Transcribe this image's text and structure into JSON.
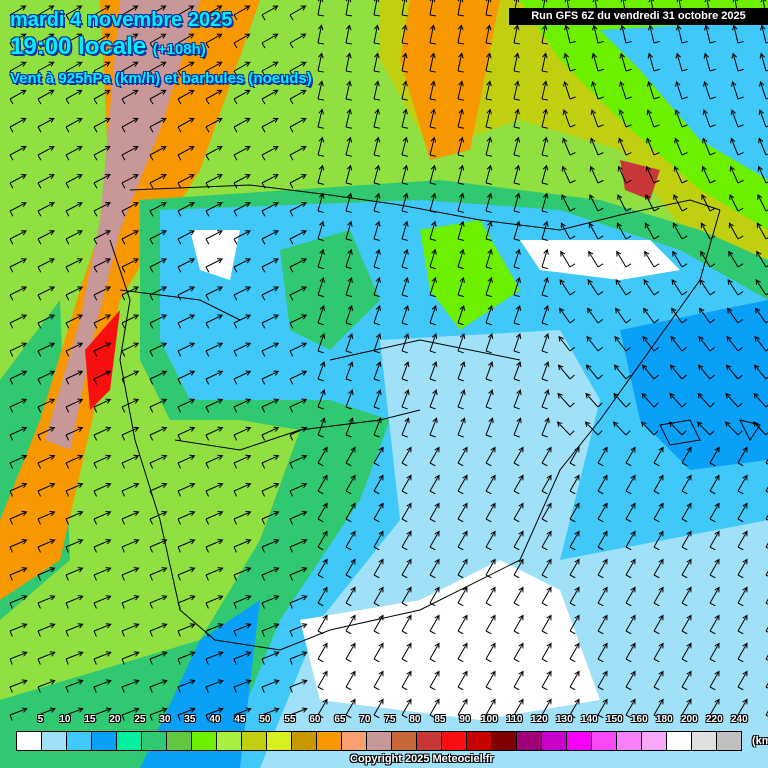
{
  "header": {
    "date": "mardi 4 novembre 2025",
    "time": "19:00 locale",
    "lead": "(+108h)",
    "parameter": "Vent à 925hPa (km/h) et barbules (noeuds)"
  },
  "run_label": "Run GFS 6Z du vendredi 31 octobre 2025",
  "legend": {
    "unit": "(km/h)",
    "labels": [
      "5",
      "10",
      "15",
      "20",
      "25",
      "30",
      "35",
      "40",
      "45",
      "50",
      "55",
      "60",
      "65",
      "70",
      "75",
      "80",
      "85",
      "90",
      "100",
      "110",
      "120",
      "130",
      "140",
      "150",
      "160",
      "180",
      "200",
      "220",
      "240"
    ],
    "colors": [
      "#ffffff",
      "#a0e0f8",
      "#40c8f8",
      "#0aa0f8",
      "#00f0a0",
      "#30c870",
      "#60c840",
      "#6cf000",
      "#a8f040",
      "#c0d010",
      "#d8f020",
      "#c89800",
      "#f89800",
      "#f8a070",
      "#c89898",
      "#c86838",
      "#c83838",
      "#f81010",
      "#c80000",
      "#800000",
      "#a00078",
      "#c800c8",
      "#f800f8",
      "#f848f8",
      "#f880f8",
      "#f8a8f8",
      "#ffffff",
      "#e0e0e0",
      "#c0c0c0"
    ]
  },
  "copyright": "Copyright 2025 Meteociel.fr"
}
